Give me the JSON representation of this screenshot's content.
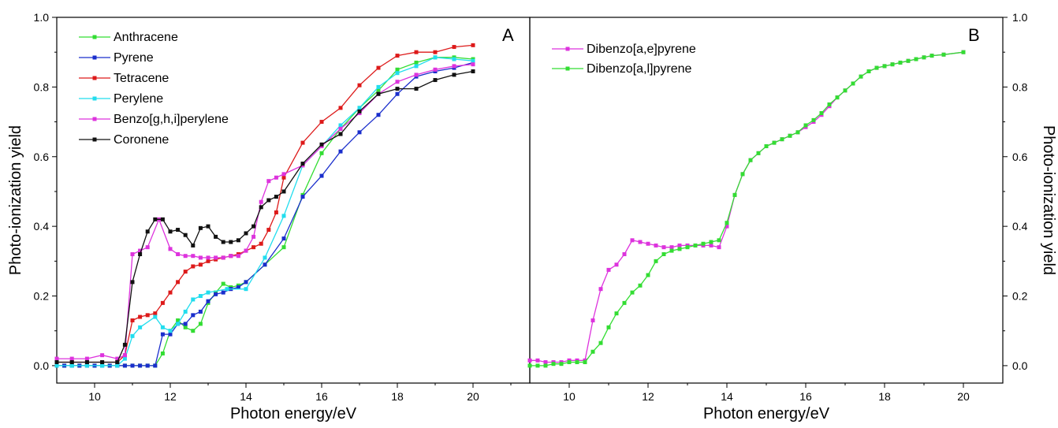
{
  "chart_data": [
    {
      "type": "line",
      "panel_label": "A",
      "xlabel": "Photon energy/eV",
      "ylabel": "Photo-ionization yield",
      "xlim": [
        9,
        21.5
      ],
      "ylim": [
        -0.05,
        1.0
      ],
      "xticks": [
        "10",
        "12",
        "14",
        "16",
        "18",
        "20"
      ],
      "yticks": [
        "0.0",
        "0.2",
        "0.4",
        "0.6",
        "0.8",
        "1.0"
      ],
      "legend_position": "top-left",
      "series": [
        {
          "name": "Anthracene",
          "color": "#33dd33",
          "x": [
            9.0,
            9.2,
            9.4,
            9.6,
            9.8,
            10.0,
            10.2,
            10.4,
            10.6,
            10.8,
            11.0,
            11.2,
            11.4,
            11.6,
            11.8,
            12.0,
            12.2,
            12.4,
            12.6,
            12.8,
            13.0,
            13.2,
            13.4,
            13.6,
            13.8,
            14.0,
            14.5,
            15.0,
            15.5,
            16.0,
            16.5,
            17.0,
            17.5,
            18.0,
            18.5,
            19.0,
            19.5,
            20.0
          ],
          "y": [
            0.0,
            0.0,
            0.0,
            0.0,
            0.0,
            0.0,
            0.0,
            0.0,
            0.0,
            0.0,
            0.0,
            0.0,
            0.0,
            0.0,
            0.035,
            0.1,
            0.13,
            0.11,
            0.1,
            0.12,
            0.18,
            0.21,
            0.235,
            0.225,
            0.23,
            0.24,
            0.29,
            0.34,
            0.49,
            0.61,
            0.68,
            0.74,
            0.79,
            0.85,
            0.87,
            0.885,
            0.885,
            0.88
          ]
        },
        {
          "name": "Pyrene",
          "color": "#1a2ecc",
          "x": [
            9.0,
            9.2,
            9.4,
            9.6,
            9.8,
            10.0,
            10.2,
            10.4,
            10.6,
            10.8,
            11.0,
            11.2,
            11.4,
            11.6,
            11.8,
            12.0,
            12.2,
            12.4,
            12.6,
            12.8,
            13.0,
            13.2,
            13.4,
            13.6,
            13.8,
            14.0,
            14.5,
            15.0,
            15.5,
            16.0,
            16.5,
            17.0,
            17.5,
            18.0,
            18.5,
            19.0,
            19.5,
            20.0
          ],
          "y": [
            0.0,
            0.0,
            0.0,
            0.0,
            0.0,
            0.0,
            0.0,
            0.0,
            0.0,
            0.0,
            0.0,
            0.0,
            0.0,
            0.0,
            0.09,
            0.09,
            0.12,
            0.12,
            0.145,
            0.155,
            0.185,
            0.205,
            0.21,
            0.22,
            0.225,
            0.24,
            0.29,
            0.365,
            0.485,
            0.545,
            0.615,
            0.67,
            0.72,
            0.78,
            0.83,
            0.845,
            0.855,
            0.87
          ]
        },
        {
          "name": "Tetracene",
          "color": "#dd1a1a",
          "x": [
            9.0,
            9.4,
            9.8,
            10.2,
            10.6,
            10.8,
            11.0,
            11.2,
            11.4,
            11.6,
            11.8,
            12.0,
            12.2,
            12.4,
            12.6,
            12.8,
            13.0,
            13.2,
            13.4,
            13.6,
            13.8,
            14.0,
            14.2,
            14.4,
            14.6,
            14.8,
            15.0,
            15.5,
            16.0,
            16.5,
            17.0,
            17.5,
            18.0,
            18.5,
            19.0,
            19.5,
            20.0
          ],
          "y": [
            0.01,
            0.01,
            0.01,
            0.01,
            0.01,
            0.03,
            0.13,
            0.14,
            0.145,
            0.15,
            0.18,
            0.21,
            0.24,
            0.27,
            0.285,
            0.29,
            0.3,
            0.305,
            0.31,
            0.315,
            0.32,
            0.33,
            0.34,
            0.35,
            0.39,
            0.44,
            0.54,
            0.64,
            0.7,
            0.74,
            0.805,
            0.855,
            0.89,
            0.9,
            0.9,
            0.915,
            0.92
          ]
        },
        {
          "name": "Perylene",
          "color": "#22ddee",
          "x": [
            9.0,
            9.4,
            9.8,
            10.2,
            10.6,
            10.8,
            11.0,
            11.2,
            11.6,
            11.8,
            12.0,
            12.2,
            12.4,
            12.6,
            12.8,
            13.0,
            13.5,
            14.0,
            14.5,
            15.0,
            15.5,
            16.0,
            16.5,
            17.0,
            17.5,
            18.0,
            18.5,
            19.0,
            19.5,
            20.0
          ],
          "y": [
            0.0,
            0.0,
            0.0,
            0.0,
            0.0,
            0.02,
            0.085,
            0.11,
            0.14,
            0.11,
            0.1,
            0.12,
            0.155,
            0.19,
            0.2,
            0.21,
            0.22,
            0.22,
            0.31,
            0.43,
            0.575,
            0.63,
            0.69,
            0.74,
            0.8,
            0.84,
            0.86,
            0.885,
            0.88,
            0.875
          ]
        },
        {
          "name": "Benzo[g,h,i]perylene",
          "color": "#dd33dd",
          "x": [
            9.0,
            9.4,
            9.8,
            10.2,
            10.6,
            10.8,
            11.0,
            11.2,
            11.4,
            11.7,
            12.0,
            12.2,
            12.4,
            12.6,
            12.8,
            13.0,
            13.2,
            13.4,
            13.6,
            13.8,
            14.0,
            14.2,
            14.4,
            14.6,
            14.8,
            15.0,
            15.5,
            16.0,
            16.5,
            17.0,
            17.5,
            18.0,
            18.5,
            19.0,
            19.5,
            20.0
          ],
          "y": [
            0.02,
            0.02,
            0.02,
            0.03,
            0.02,
            0.03,
            0.32,
            0.33,
            0.34,
            0.42,
            0.335,
            0.32,
            0.315,
            0.315,
            0.31,
            0.31,
            0.31,
            0.31,
            0.315,
            0.315,
            0.33,
            0.37,
            0.47,
            0.53,
            0.54,
            0.55,
            0.575,
            0.63,
            0.68,
            0.725,
            0.78,
            0.815,
            0.835,
            0.85,
            0.86,
            0.865
          ]
        },
        {
          "name": "Coronene",
          "color": "#111111",
          "x": [
            9.0,
            9.4,
            9.8,
            10.2,
            10.6,
            10.8,
            11.0,
            11.2,
            11.4,
            11.6,
            11.8,
            12.0,
            12.2,
            12.4,
            12.6,
            12.8,
            13.0,
            13.2,
            13.4,
            13.6,
            13.8,
            14.0,
            14.2,
            14.4,
            14.6,
            14.8,
            15.0,
            15.5,
            16.0,
            16.5,
            17.0,
            17.5,
            18.0,
            18.5,
            19.0,
            19.5,
            20.0
          ],
          "y": [
            0.01,
            0.01,
            0.01,
            0.01,
            0.01,
            0.06,
            0.24,
            0.32,
            0.385,
            0.42,
            0.42,
            0.385,
            0.39,
            0.375,
            0.345,
            0.395,
            0.4,
            0.37,
            0.355,
            0.355,
            0.36,
            0.38,
            0.4,
            0.455,
            0.475,
            0.485,
            0.5,
            0.58,
            0.635,
            0.665,
            0.73,
            0.78,
            0.795,
            0.795,
            0.82,
            0.835,
            0.845
          ]
        }
      ]
    },
    {
      "type": "line",
      "panel_label": "B",
      "xlabel": "Photon energy/eV",
      "ylabel": "Photo-ionization yield",
      "xlim": [
        9,
        21
      ],
      "ylim": [
        -0.05,
        1.0
      ],
      "xticks": [
        "10",
        "12",
        "14",
        "16",
        "18",
        "20"
      ],
      "yticks": [
        "0.0",
        "0.2",
        "0.4",
        "0.6",
        "0.8",
        "1.0"
      ],
      "legend_position": "top-left",
      "series": [
        {
          "name": "Dibenzo[a,e]pyrene",
          "color": "#dd33dd",
          "x": [
            9.0,
            9.2,
            9.4,
            9.6,
            9.8,
            10.0,
            10.2,
            10.4,
            10.6,
            10.8,
            11.0,
            11.2,
            11.4,
            11.6,
            11.8,
            12.0,
            12.2,
            12.4,
            12.6,
            12.8,
            13.0,
            13.2,
            13.4,
            13.6,
            13.8,
            14.0,
            14.2,
            14.4,
            14.6,
            14.8,
            15.0,
            15.2,
            15.4,
            15.6,
            15.8,
            16.0,
            16.2,
            16.4,
            16.6,
            16.8,
            17.0,
            17.2,
            17.4,
            17.6,
            17.8,
            18.0,
            18.2,
            18.4,
            18.6,
            18.8,
            19.0,
            19.2,
            19.5,
            20.0
          ],
          "y": [
            0.015,
            0.015,
            0.01,
            0.01,
            0.01,
            0.015,
            0.015,
            0.015,
            0.13,
            0.22,
            0.275,
            0.29,
            0.32,
            0.36,
            0.355,
            0.35,
            0.345,
            0.34,
            0.34,
            0.345,
            0.345,
            0.345,
            0.345,
            0.345,
            0.34,
            0.4,
            0.49,
            0.55,
            0.59,
            0.61,
            0.63,
            0.64,
            0.65,
            0.66,
            0.67,
            0.685,
            0.7,
            0.72,
            0.745,
            0.77,
            0.79,
            0.81,
            0.83,
            0.845,
            0.855,
            0.86,
            0.865,
            0.87,
            0.875,
            0.88,
            0.885,
            0.89,
            0.893,
            0.9
          ]
        },
        {
          "name": "Dibenzo[a,l]pyrene",
          "color": "#33dd33",
          "x": [
            9.0,
            9.2,
            9.4,
            9.6,
            9.8,
            10.0,
            10.2,
            10.4,
            10.6,
            10.8,
            11.0,
            11.2,
            11.4,
            11.6,
            11.8,
            12.0,
            12.2,
            12.4,
            12.6,
            12.8,
            13.0,
            13.2,
            13.4,
            13.6,
            13.8,
            14.0,
            14.2,
            14.4,
            14.6,
            14.8,
            15.0,
            15.2,
            15.4,
            15.6,
            15.8,
            16.0,
            16.2,
            16.4,
            16.6,
            16.8,
            17.0,
            17.2,
            17.4,
            17.6,
            17.8,
            18.0,
            18.2,
            18.4,
            18.6,
            18.8,
            19.0,
            19.2,
            19.5,
            20.0
          ],
          "y": [
            0.0,
            0.0,
            0.0,
            0.005,
            0.005,
            0.01,
            0.01,
            0.01,
            0.04,
            0.065,
            0.11,
            0.15,
            0.18,
            0.21,
            0.23,
            0.26,
            0.3,
            0.32,
            0.33,
            0.335,
            0.34,
            0.345,
            0.35,
            0.355,
            0.36,
            0.41,
            0.49,
            0.55,
            0.59,
            0.61,
            0.63,
            0.64,
            0.65,
            0.66,
            0.67,
            0.69,
            0.705,
            0.725,
            0.75,
            0.77,
            0.79,
            0.81,
            0.83,
            0.845,
            0.855,
            0.86,
            0.865,
            0.87,
            0.875,
            0.88,
            0.885,
            0.89,
            0.893,
            0.9
          ]
        }
      ]
    }
  ]
}
